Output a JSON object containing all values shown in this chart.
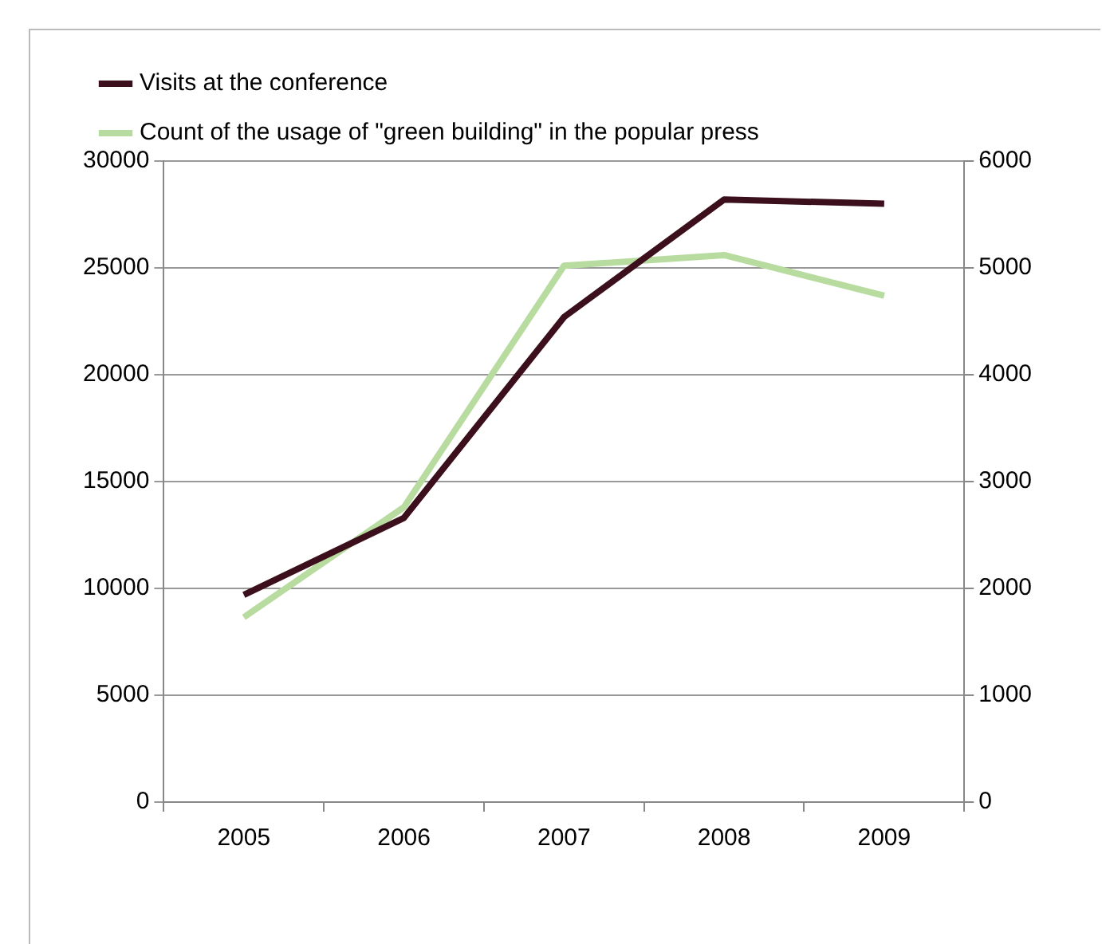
{
  "chart_data": {
    "type": "line",
    "categories": [
      "2005",
      "2006",
      "2007",
      "2008",
      "2009"
    ],
    "series": [
      {
        "name": "Visits at the conference",
        "color": "#3b0f1c",
        "values": [
          9700,
          13300,
          22700,
          28200,
          28000
        ]
      },
      {
        "name": "Count of the usage of \"green building\" in the popular press",
        "color": "#b8dca0",
        "axis": "y2",
        "values": [
          1730,
          2760,
          5020,
          5120,
          4740
        ]
      }
    ],
    "ylim": [
      0,
      30000
    ],
    "yticks": [
      0,
      5000,
      10000,
      15000,
      20000,
      25000,
      30000
    ],
    "y2lim": [
      0,
      6000
    ],
    "y2ticks": [
      0,
      1000,
      2000,
      3000,
      4000,
      5000,
      6000
    ],
    "grid": "y",
    "legend": "top left",
    "marker": "none",
    "line_style": "solid"
  }
}
